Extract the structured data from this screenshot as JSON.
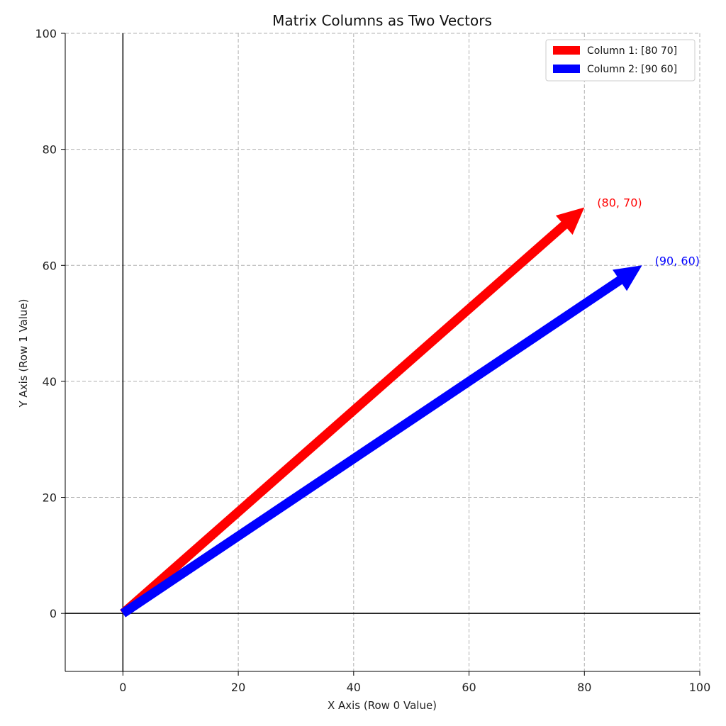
{
  "chart_data": {
    "type": "vector",
    "title": "Matrix Columns as Two Vectors",
    "xlabel": "X Axis (Row 0 Value)",
    "ylabel": "Y Axis (Row 1 Value)",
    "xlim": [
      -10,
      100
    ],
    "ylim": [
      -10,
      100
    ],
    "xticks": [
      "0",
      "20",
      "40",
      "60",
      "80",
      "100"
    ],
    "yticks": [
      "0",
      "20",
      "40",
      "60",
      "80",
      "100"
    ],
    "grid": true,
    "legend_position": "top-right",
    "series": [
      {
        "name": "Column 1: [80 70]",
        "x": [
          0,
          80
        ],
        "y": [
          0,
          70
        ],
        "color": "#ff0000",
        "label": "(80, 70)"
      },
      {
        "name": "Column 2: [90 60]",
        "x": [
          0,
          90
        ],
        "y": [
          0,
          60
        ],
        "color": "#0000ff",
        "label": "(90, 60)"
      }
    ]
  }
}
